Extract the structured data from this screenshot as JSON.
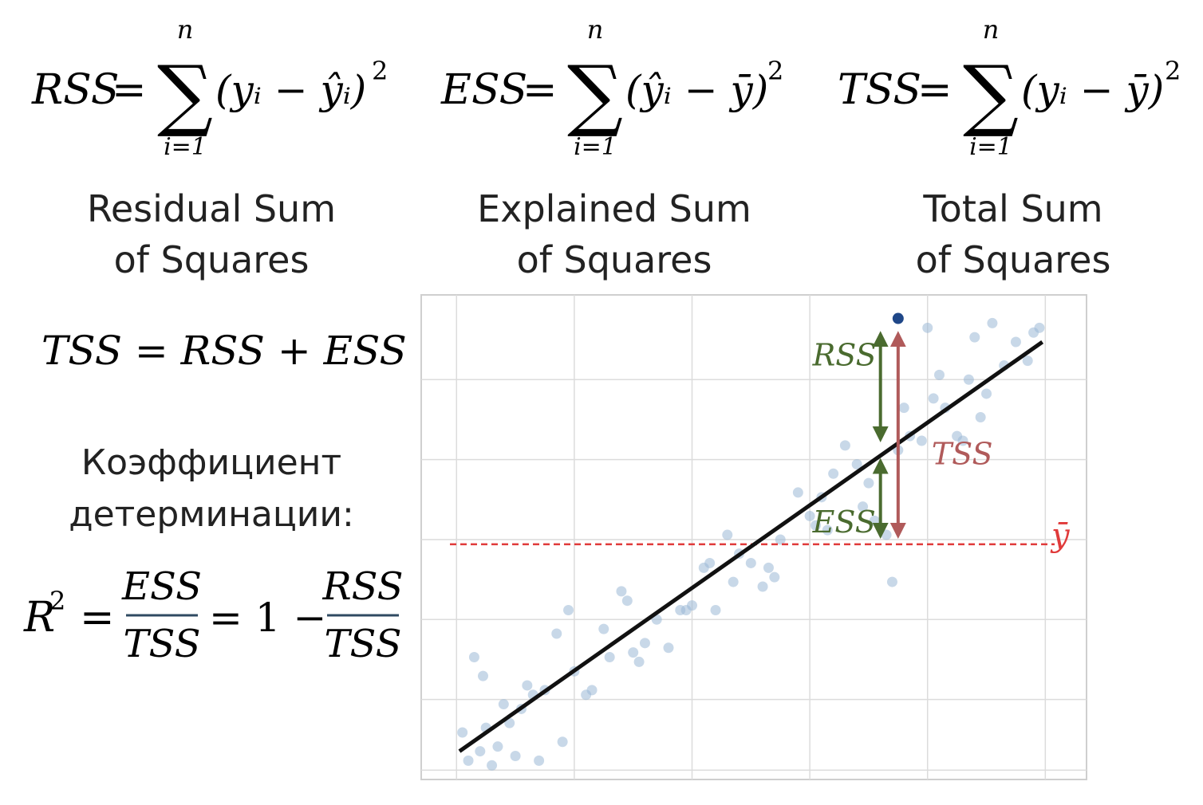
{
  "formulas": {
    "rss": {
      "lhs": "RSS",
      "upper": "n",
      "lower": "i=1",
      "body": "(yᵢ − ŷᵢ)",
      "power": "2"
    },
    "ess": {
      "lhs": "ESS",
      "upper": "n",
      "lower": "i=1",
      "body": "(ŷᵢ − ȳ)",
      "power": "2"
    },
    "tss": {
      "lhs": "TSS",
      "upper": "n",
      "lower": "i=1",
      "body": "(yᵢ − ȳ)",
      "power": "2"
    }
  },
  "captions": {
    "rss": [
      "Residual Sum",
      "of Squares"
    ],
    "ess": [
      "Explained Sum",
      "of Squares"
    ],
    "tss": [
      "Total Sum",
      "of Squares"
    ]
  },
  "identity": "TSS = RSS + ESS",
  "coef_label": [
    "Коэффициент",
    "детерминации:"
  ],
  "r2": {
    "lhs": "R",
    "power": "2",
    "frac1_num": "ESS",
    "frac1_den": "TSS",
    "one_minus": "= 1 −",
    "frac2_num": "RSS",
    "frac2_den": "TSS"
  },
  "colors": {
    "formula": "#2f4a62",
    "rss_arrow": "#4a6b2f",
    "tss_arrow": "#b05a5a",
    "mean_line": "#e03a3a",
    "points": "#9bb8d6",
    "highlight_point": "#1f4788"
  },
  "chart_data": {
    "type": "scatter",
    "grid": true,
    "regression_line": {
      "x": [
        0.05,
        9.95
      ],
      "y": [
        0.6,
        9.3
      ]
    },
    "mean_y": 5.0,
    "mean_label": "ȳ",
    "highlighted_point": {
      "x": 7.5,
      "y": 9.8
    },
    "annotations": [
      {
        "label": "RSS",
        "from_y": 9.5,
        "to_y": 7.2,
        "x": 7.2
      },
      {
        "label": "ESS",
        "from_y": 6.8,
        "to_y": 5.15,
        "x": 7.2
      },
      {
        "label": "TSS",
        "from_y": 9.5,
        "to_y": 5.15,
        "x": 7.5
      }
    ],
    "points": [
      [
        0.1,
        1.0
      ],
      [
        0.2,
        0.4
      ],
      [
        0.3,
        2.6
      ],
      [
        0.4,
        0.6
      ],
      [
        0.45,
        2.2
      ],
      [
        0.5,
        1.1
      ],
      [
        0.6,
        0.3
      ],
      [
        0.7,
        0.7
      ],
      [
        0.8,
        1.6
      ],
      [
        0.9,
        1.2
      ],
      [
        1.0,
        0.5
      ],
      [
        1.1,
        1.5
      ],
      [
        1.2,
        2.0
      ],
      [
        1.3,
        1.8
      ],
      [
        1.4,
        0.4
      ],
      [
        1.5,
        1.9
      ],
      [
        1.7,
        3.1
      ],
      [
        1.8,
        0.8
      ],
      [
        1.9,
        3.6
      ],
      [
        2.0,
        2.3
      ],
      [
        2.2,
        1.8
      ],
      [
        2.3,
        1.9
      ],
      [
        2.5,
        3.2
      ],
      [
        2.6,
        2.6
      ],
      [
        2.8,
        4.0
      ],
      [
        2.9,
        3.8
      ],
      [
        3.0,
        2.7
      ],
      [
        3.1,
        2.5
      ],
      [
        3.2,
        2.9
      ],
      [
        3.4,
        3.4
      ],
      [
        3.6,
        2.8
      ],
      [
        3.8,
        3.6
      ],
      [
        3.9,
        3.6
      ],
      [
        4.0,
        3.7
      ],
      [
        4.2,
        4.5
      ],
      [
        4.3,
        4.6
      ],
      [
        4.4,
        3.6
      ],
      [
        4.6,
        5.2
      ],
      [
        4.7,
        4.2
      ],
      [
        4.8,
        4.8
      ],
      [
        5.0,
        4.6
      ],
      [
        5.2,
        4.1
      ],
      [
        5.3,
        4.5
      ],
      [
        5.4,
        4.3
      ],
      [
        5.5,
        5.1
      ],
      [
        5.8,
        6.1
      ],
      [
        6.0,
        5.6
      ],
      [
        6.1,
        5.4
      ],
      [
        6.2,
        6.0
      ],
      [
        6.3,
        5.3
      ],
      [
        6.4,
        6.5
      ],
      [
        6.6,
        7.1
      ],
      [
        6.8,
        6.7
      ],
      [
        6.9,
        5.8
      ],
      [
        7.0,
        6.3
      ],
      [
        7.1,
        5.5
      ],
      [
        7.3,
        5.2
      ],
      [
        7.4,
        4.2
      ],
      [
        7.5,
        7.0
      ],
      [
        7.7,
        7.3
      ],
      [
        7.9,
        7.2
      ],
      [
        8.1,
        8.1
      ],
      [
        8.2,
        8.6
      ],
      [
        8.3,
        7.9
      ],
      [
        8.5,
        7.3
      ],
      [
        8.6,
        7.2
      ],
      [
        8.7,
        8.5
      ],
      [
        8.9,
        7.7
      ],
      [
        9.0,
        8.2
      ],
      [
        9.1,
        9.7
      ],
      [
        9.3,
        8.8
      ],
      [
        9.5,
        9.3
      ],
      [
        9.7,
        8.9
      ],
      [
        9.8,
        9.5
      ],
      [
        9.9,
        9.6
      ],
      [
        8.0,
        9.6
      ],
      [
        7.6,
        7.9
      ],
      [
        8.8,
        9.4
      ]
    ],
    "xlim": [
      -0.6,
      10.7
    ],
    "ylim": [
      0.0,
      10.3
    ]
  }
}
